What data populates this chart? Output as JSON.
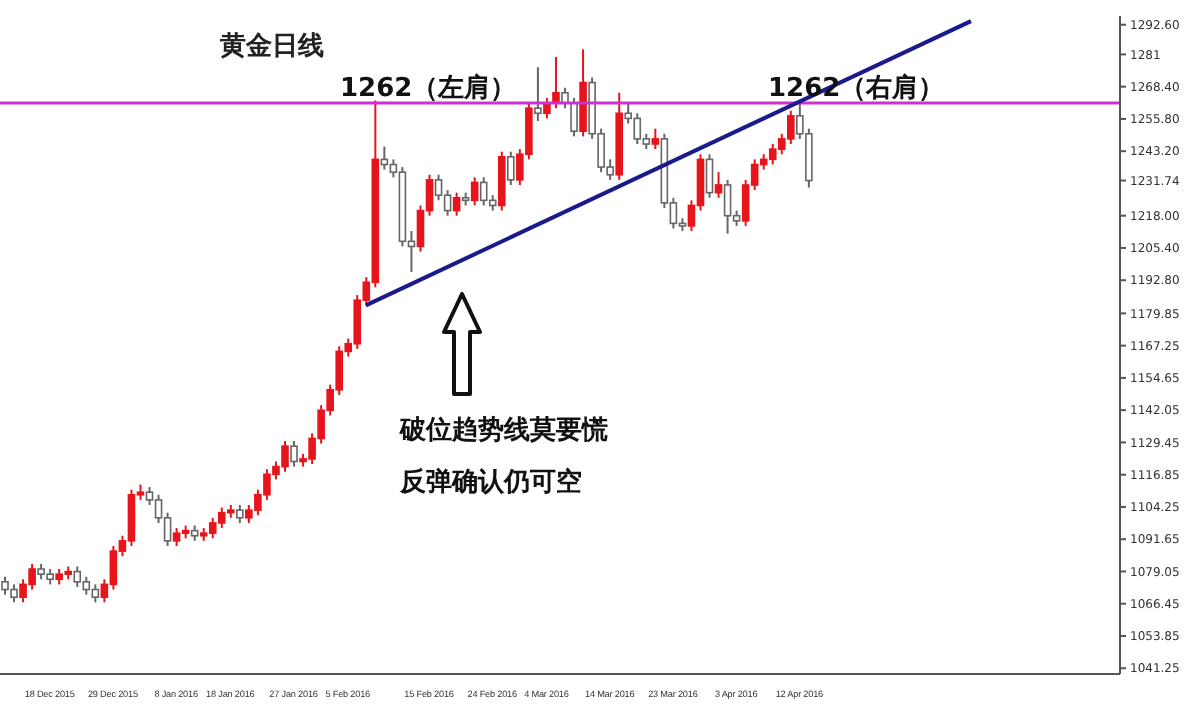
{
  "chart_data": {
    "type": "candlestick",
    "title": "黄金日线",
    "categories": [
      null,
      null,
      null,
      null,
      null,
      "18 Dec 2015",
      null,
      null,
      null,
      null,
      null,
      null,
      "29 Dec 2015",
      null,
      null,
      null,
      null,
      null,
      null,
      "8 Jan 2016",
      null,
      null,
      null,
      null,
      null,
      "18 Jan 2016",
      null,
      null,
      null,
      null,
      null,
      null,
      "27 Jan 2016",
      null,
      null,
      null,
      null,
      null,
      "5 Feb 2016",
      null,
      null,
      null,
      null,
      null,
      null,
      null,
      null,
      "15 Feb 2016",
      null,
      null,
      null,
      null,
      null,
      null,
      "24 Feb 2016",
      null,
      null,
      null,
      null,
      null,
      "4 Mar 2016",
      null,
      null,
      null,
      null,
      null,
      null,
      "14 Mar 2016",
      null,
      null,
      null,
      null,
      null,
      null,
      "23 Mar 2016",
      null,
      null,
      null,
      null,
      null,
      null,
      "3 Apr 2016",
      null,
      null,
      null,
      null,
      null,
      null,
      "12 Apr 2016",
      null,
      null,
      null,
      null,
      null,
      null,
      null,
      null,
      null,
      null,
      null,
      null,
      null,
      null,
      null,
      null,
      null,
      null,
      null,
      null,
      null,
      null,
      null,
      null,
      null,
      null,
      null,
      null,
      null,
      null,
      null,
      null,
      null,
      null,
      null
    ],
    "series": [
      {
        "type": "candlestick",
        "colors": [
          "#ffffff",
          "#ffffff",
          "#e8141c",
          "#e8141c",
          "#ffffff",
          "#ffffff",
          "#e8141c",
          "#e8141c",
          "#ffffff",
          "#ffffff",
          "#ffffff",
          "#e8141c",
          "#e8141c",
          "#e8141c",
          "#e8141c",
          "#e8141c",
          "#ffffff",
          "#ffffff",
          "#ffffff",
          "#e8141c",
          "#e8141c",
          "#ffffff",
          "#e8141c",
          "#e8141c",
          "#e8141c",
          "#e8141c",
          "#ffffff",
          "#e8141c",
          "#e8141c",
          "#e8141c",
          "#e8141c",
          "#e8141c",
          "#ffffff",
          "#e8141c",
          "#e8141c",
          "#e8141c",
          "#e8141c",
          "#e8141c",
          "#e8141c",
          "#e8141c",
          "#e8141c",
          "#e8141c",
          "#ffffff",
          "#ffffff",
          "#ffffff",
          "#ffffff",
          "#e8141c",
          "#e8141c",
          "#ffffff",
          "#ffffff",
          "#e8141c",
          "#ffffff",
          "#e8141c",
          "#ffffff",
          "#ffffff",
          "#e8141c",
          "#ffffff",
          "#e8141c",
          "#e8141c",
          "#ffffff",
          "#e8141c",
          "#e8141c",
          "#ffffff",
          "#ffffff",
          "#e8141c",
          "#ffffff",
          "#ffffff",
          "#ffffff",
          "#e8141c",
          "#ffffff",
          "#ffffff",
          "#ffffff",
          "#e8141c",
          "#ffffff",
          "#ffffff",
          "#ffffff",
          "#e8141c",
          "#e8141c",
          "#ffffff",
          "#e8141c",
          "#ffffff",
          "#ffffff",
          "#e8141c",
          "#e8141c",
          "#e8141c",
          "#e8141c",
          "#e8141c",
          "#e8141c",
          "#ffffff",
          "#ffffff",
          null,
          null,
          null,
          null,
          null,
          null,
          null,
          null,
          null,
          null,
          null,
          null,
          null,
          null,
          null,
          null,
          null,
          null,
          null,
          null,
          null,
          null,
          null,
          null,
          null,
          null,
          null,
          null,
          null,
          null,
          null,
          null,
          null,
          null
        ],
        "ohlc": [
          [
            1075,
            1077,
            1070,
            1072
          ],
          [
            1072,
            1074,
            1067,
            1069
          ],
          [
            1069,
            1076,
            1067,
            1074
          ],
          [
            1074,
            1082,
            1072,
            1080
          ],
          [
            1080,
            1082,
            1076,
            1078
          ],
          [
            1078,
            1080,
            1074,
            1076
          ],
          [
            1076,
            1080,
            1074,
            1078
          ],
          [
            1078,
            1081,
            1076,
            1079
          ],
          [
            1079,
            1081,
            1073,
            1075
          ],
          [
            1075,
            1077,
            1070,
            1072
          ],
          [
            1072,
            1074,
            1067,
            1069
          ],
          [
            1069,
            1076,
            1067,
            1074
          ],
          [
            1074,
            1089,
            1072,
            1087
          ],
          [
            1087,
            1093,
            1085,
            1091
          ],
          [
            1091,
            1111,
            1089,
            1109
          ],
          [
            1109,
            1113,
            1107,
            1110
          ],
          [
            1110,
            1112,
            1105,
            1107
          ],
          [
            1107,
            1109,
            1098,
            1100
          ],
          [
            1100,
            1102,
            1089,
            1091
          ],
          [
            1091,
            1096,
            1089,
            1094
          ],
          [
            1094,
            1097,
            1092,
            1095
          ],
          [
            1095,
            1097,
            1091,
            1093
          ],
          [
            1093,
            1096,
            1091,
            1094
          ],
          [
            1094,
            1100,
            1092,
            1098
          ],
          [
            1098,
            1104,
            1096,
            1102
          ],
          [
            1102,
            1105,
            1100,
            1103
          ],
          [
            1103,
            1105,
            1098,
            1100
          ],
          [
            1100,
            1105,
            1098,
            1103
          ],
          [
            1103,
            1111,
            1101,
            1109
          ],
          [
            1109,
            1119,
            1107,
            1117
          ],
          [
            1117,
            1122,
            1115,
            1120
          ],
          [
            1120,
            1130,
            1118,
            1128
          ],
          [
            1128,
            1130,
            1120,
            1122
          ],
          [
            1122,
            1125,
            1120,
            1123
          ],
          [
            1123,
            1133,
            1121,
            1131
          ],
          [
            1131,
            1144,
            1129,
            1142
          ],
          [
            1142,
            1152,
            1140,
            1150
          ],
          [
            1150,
            1167,
            1148,
            1165
          ],
          [
            1165,
            1170,
            1163,
            1168
          ],
          [
            1168,
            1187,
            1166,
            1185
          ],
          [
            1185,
            1194,
            1183,
            1192
          ],
          [
            1192,
            1263,
            1190,
            1240
          ],
          [
            1240,
            1245,
            1236,
            1238
          ],
          [
            1238,
            1240,
            1233,
            1235
          ],
          [
            1235,
            1237,
            1206,
            1208
          ],
          [
            1208,
            1212,
            1196,
            1206
          ],
          [
            1206,
            1222,
            1204,
            1220
          ],
          [
            1220,
            1234,
            1218,
            1232
          ],
          [
            1232,
            1234,
            1224,
            1226
          ],
          [
            1226,
            1228,
            1218,
            1220
          ],
          [
            1220,
            1227,
            1218,
            1225
          ],
          [
            1225,
            1227,
            1222,
            1224
          ],
          [
            1224,
            1233,
            1222,
            1231
          ],
          [
            1231,
            1233,
            1222,
            1224
          ],
          [
            1224,
            1226,
            1220,
            1222
          ],
          [
            1222,
            1243,
            1220,
            1241
          ],
          [
            1241,
            1243,
            1230,
            1232
          ],
          [
            1232,
            1244,
            1230,
            1242
          ],
          [
            1242,
            1262,
            1240,
            1260
          ],
          [
            1260,
            1276,
            1255,
            1258
          ],
          [
            1258,
            1264,
            1256,
            1262
          ],
          [
            1262,
            1280,
            1260,
            1266
          ],
          [
            1266,
            1268,
            1260,
            1262
          ],
          [
            1262,
            1264,
            1249,
            1251
          ],
          [
            1251,
            1283,
            1249,
            1270
          ],
          [
            1270,
            1272,
            1248,
            1250
          ],
          [
            1250,
            1252,
            1235,
            1237
          ],
          [
            1237,
            1240,
            1232,
            1234
          ],
          [
            1234,
            1266,
            1232,
            1258
          ],
          [
            1258,
            1262,
            1254,
            1256
          ],
          [
            1256,
            1258,
            1246,
            1248
          ],
          [
            1248,
            1250,
            1244,
            1246
          ],
          [
            1246,
            1252,
            1244,
            1248
          ],
          [
            1248,
            1250,
            1221,
            1223
          ],
          [
            1223,
            1225,
            1213,
            1215
          ],
          [
            1215,
            1217,
            1212,
            1214
          ],
          [
            1214,
            1224,
            1212,
            1222
          ],
          [
            1222,
            1242,
            1220,
            1240
          ],
          [
            1240,
            1242,
            1225,
            1227
          ],
          [
            1227,
            1235,
            1225,
            1230
          ],
          [
            1230,
            1232,
            1211,
            1218
          ],
          [
            1218,
            1220,
            1214,
            1216
          ],
          [
            1216,
            1232,
            1214,
            1230
          ],
          [
            1230,
            1240,
            1228,
            1238
          ],
          [
            1238,
            1242,
            1236,
            1240
          ],
          [
            1240,
            1246,
            1238,
            1244
          ],
          [
            1244,
            1250,
            1242,
            1248
          ],
          [
            1248,
            1259,
            1246,
            1257
          ],
          [
            1257,
            1262,
            1248,
            1250
          ],
          [
            1250,
            1252,
            1229,
            1231.74
          ],
          null,
          null,
          null,
          null,
          null,
          null,
          null,
          null,
          null,
          null,
          null,
          null,
          null,
          null,
          null,
          null,
          null,
          null,
          null,
          null,
          null,
          null,
          null,
          null,
          null,
          null,
          null,
          null,
          null,
          null,
          null,
          null,
          null,
          null
        ]
      },
      {
        "type": "line",
        "color": "#1a1a8c",
        "values": [
          null,
          null,
          null,
          null,
          null,
          null,
          null,
          null,
          null,
          null,
          null,
          null,
          null,
          null,
          null,
          null,
          null,
          null,
          null,
          null,
          null,
          null,
          null,
          null,
          null,
          null,
          null,
          null,
          null,
          null,
          null,
          null,
          null,
          null,
          null,
          null,
          null,
          null,
          null,
          null,
          1183,
          null,
          null,
          null,
          null,
          null,
          null,
          null,
          null,
          null,
          null,
          null,
          null,
          null,
          null,
          null,
          null,
          null,
          null,
          null,
          null,
          null,
          null,
          null,
          null,
          null,
          null,
          null,
          null,
          null,
          null,
          null,
          null,
          null,
          null,
          null,
          null,
          null,
          null,
          null,
          null,
          null,
          null,
          null,
          null,
          null,
          null,
          null,
          null,
          null,
          null,
          null,
          null,
          null,
          null,
          null,
          null,
          null,
          null,
          null,
          null,
          null,
          null,
          null,
          null,
          null,
          null,
          1294,
          null,
          null,
          null,
          null,
          null,
          null,
          null,
          null,
          null,
          null,
          null,
          null,
          null,
          null,
          null,
          null
        ]
      }
    ],
    "ylim": [
      1039,
      1296
    ],
    "yticks": [
      {
        "value": 1292.6,
        "label": "1292.60"
      },
      1281,
      {
        "value": 1268.4,
        "label": "1268.40"
      },
      {
        "value": 1255.8,
        "label": "1255.80"
      },
      {
        "value": 1243.2,
        "label": "1243.20"
      },
      1231.74,
      {
        "value": 1218,
        "label": "1218.00"
      },
      {
        "value": 1205.4,
        "label": "1205.40"
      },
      {
        "value": 1192.8,
        "label": "1192.80"
      },
      1179.85,
      1167.25,
      1154.65,
      1142.05,
      1129.45,
      1116.85,
      1104.25,
      1091.65,
      1079.05,
      1066.45,
      1053.85,
      1041.25
    ],
    "ref_lines": [
      {
        "axis": "y",
        "value": 1262,
        "color": "#cc33cc"
      }
    ],
    "annotations": [
      {
        "text": "1262（左肩）",
        "y": 1262
      },
      {
        "text": "1262（右肩）",
        "y": 1262
      },
      "破位趋势线莫要慌",
      "反弹确认仍可空"
    ],
    "grid": false,
    "legend": false
  }
}
